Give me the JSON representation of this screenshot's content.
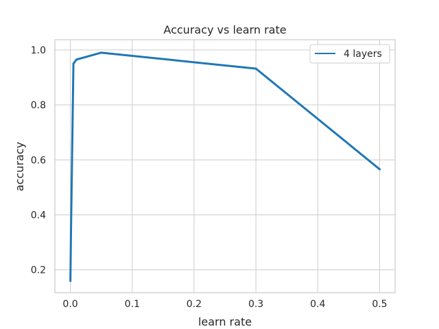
{
  "chart_data": {
    "type": "line",
    "title": "Accuracy vs learn rate",
    "xlabel": "learn rate",
    "ylabel": "accuracy",
    "xlim": [
      -0.025,
      0.525
    ],
    "ylim": [
      0.117,
      1.037
    ],
    "xticks": [
      "0.0",
      "0.1",
      "0.2",
      "0.3",
      "0.4",
      "0.5"
    ],
    "yticks": [
      "0.2",
      "0.4",
      "0.6",
      "0.8",
      "1.0"
    ],
    "grid": true,
    "legend_position": "top-right",
    "series": [
      {
        "name": "4 layers",
        "color": "#1f77b4",
        "x": [
          0.0001,
          0.001,
          0.005,
          0.01,
          0.05,
          0.3,
          0.5
        ],
        "y": [
          0.16,
          0.33,
          0.95,
          0.965,
          0.99,
          0.932,
          0.566
        ]
      }
    ]
  }
}
